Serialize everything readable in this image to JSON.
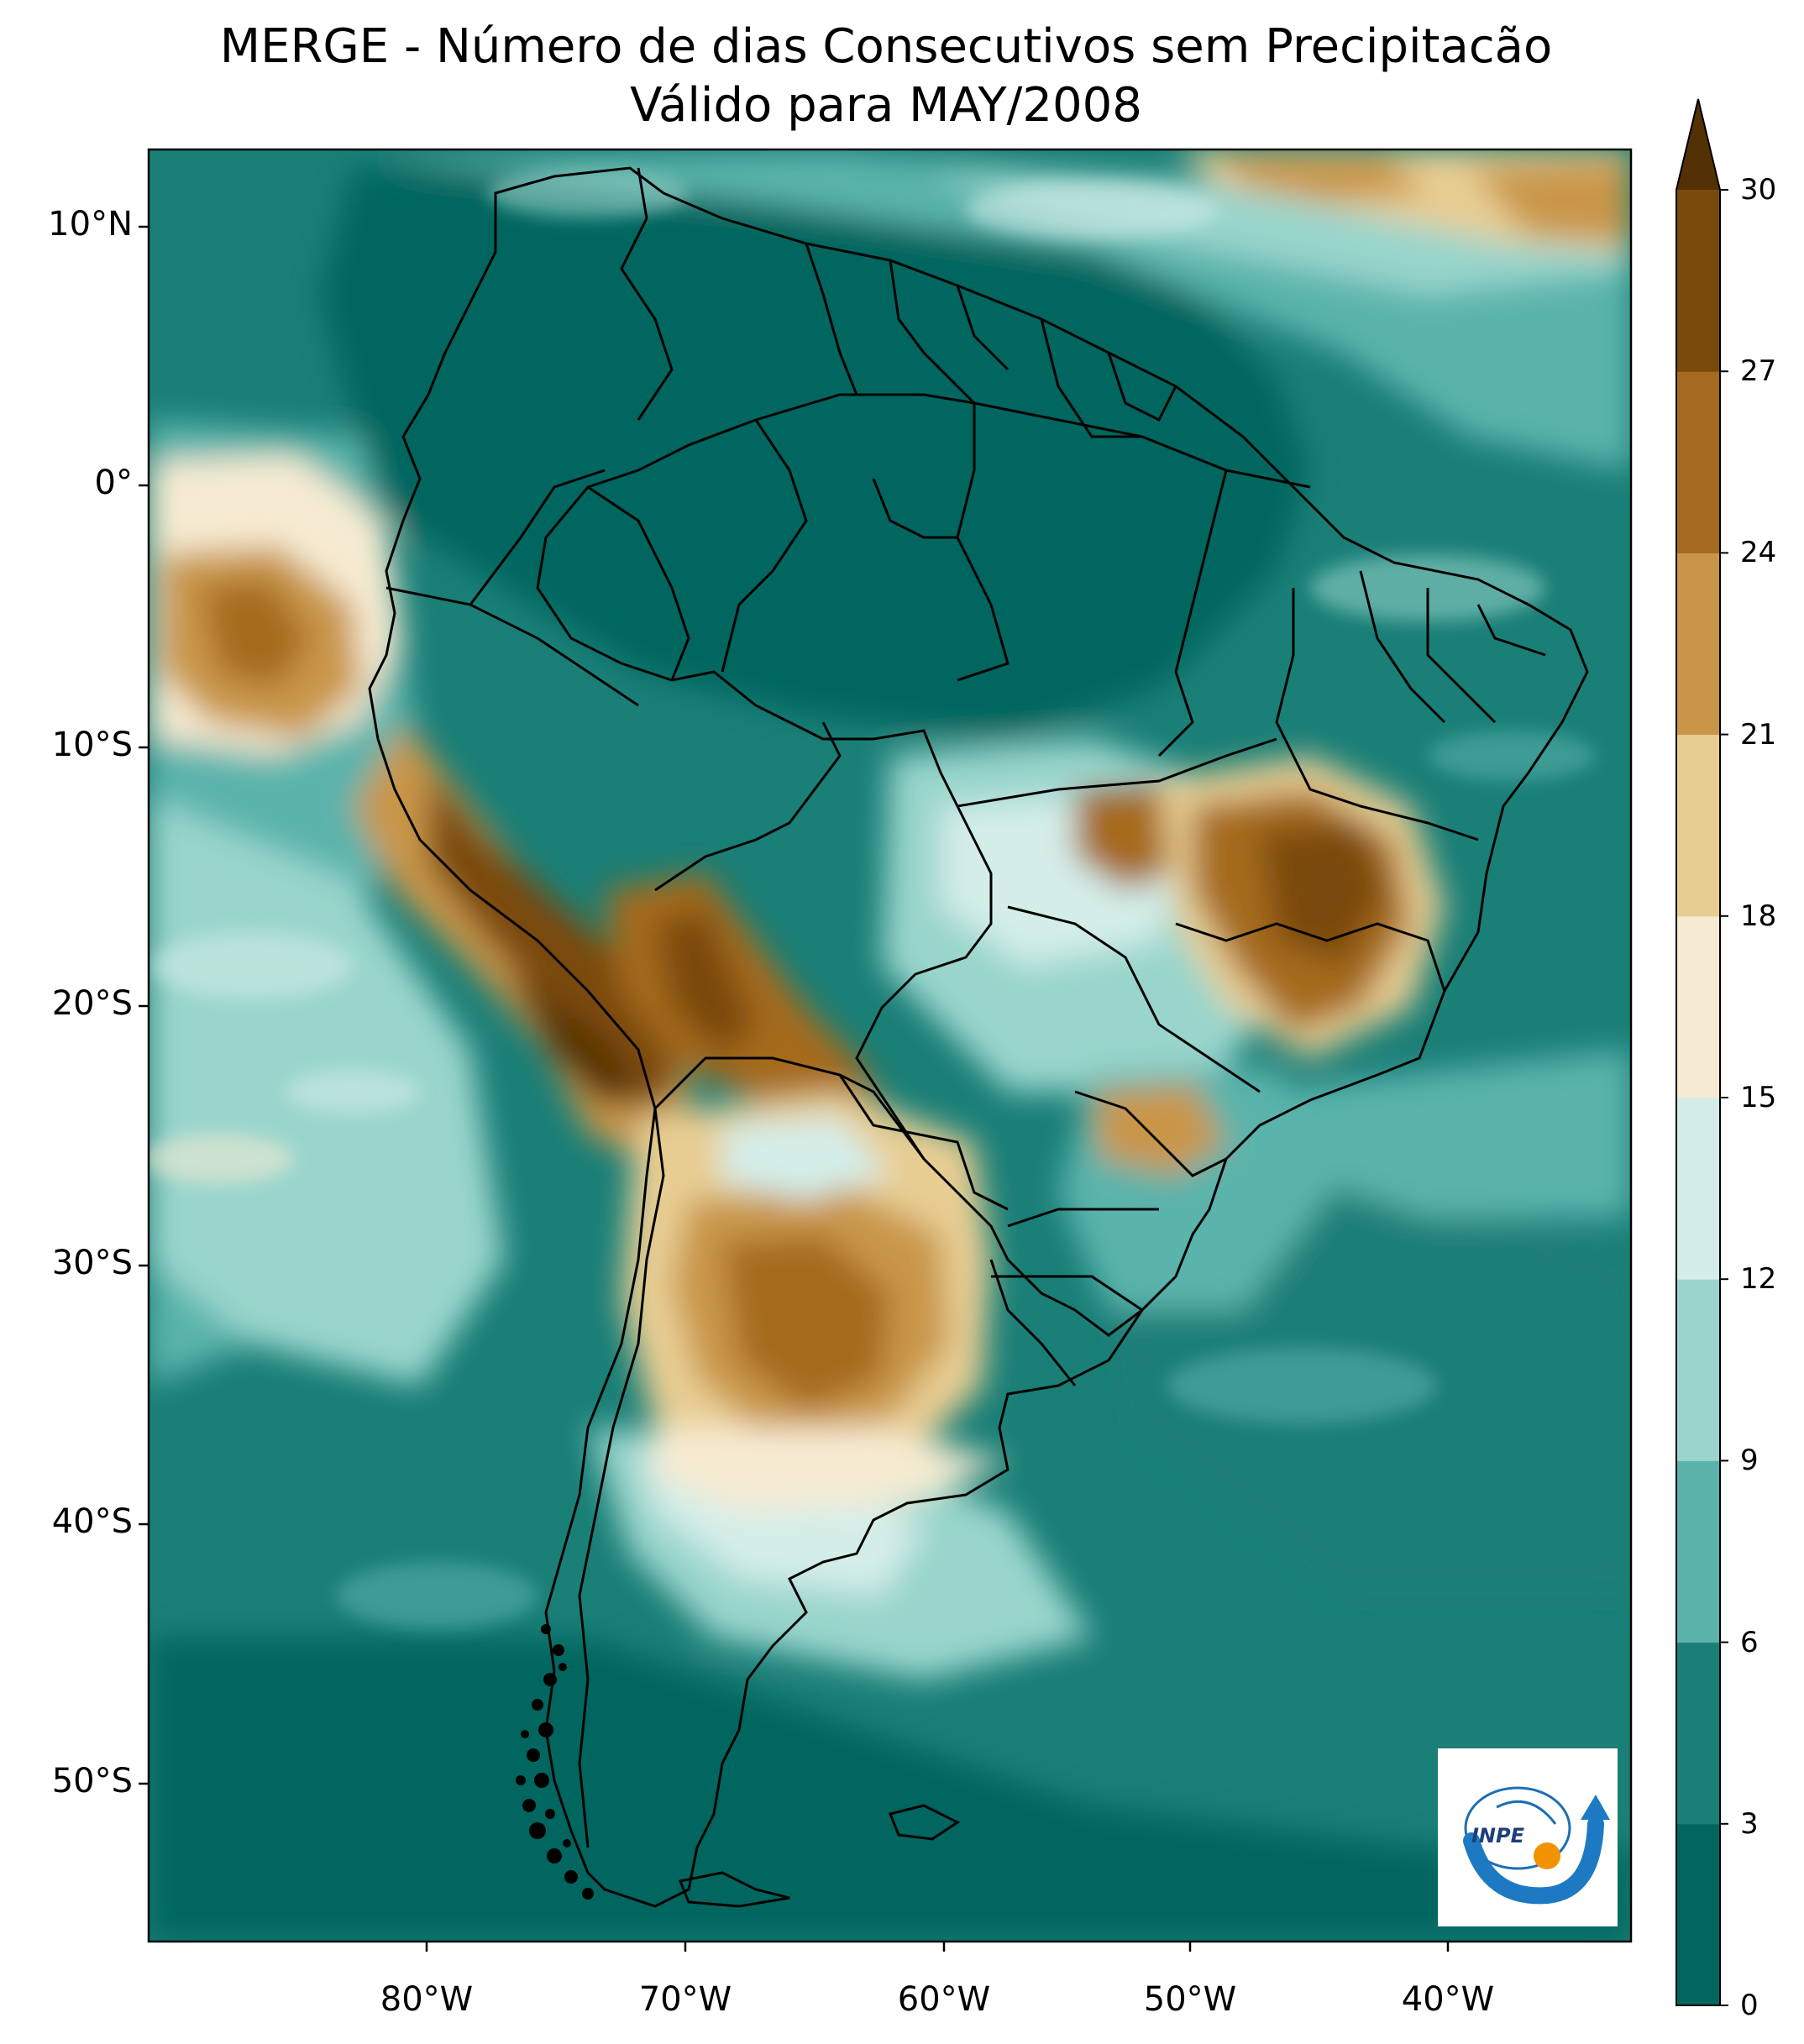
{
  "title": {
    "line1": "MERGE - Número de dias Consecutivos sem Precipitacão",
    "line2": "Válido para MAY/2008"
  },
  "axes": {
    "lat_labels": [
      "10°N",
      "0°",
      "10°S",
      "20°S",
      "30°S",
      "40°S",
      "50°S"
    ],
    "lon_labels": [
      "80°W",
      "70°W",
      "60°W",
      "50°W",
      "40°W"
    ],
    "lon_range": [
      -89.0,
      -31.0
    ],
    "lat_range": [
      -56.5,
      13.0
    ]
  },
  "colorbar": {
    "ticks": [
      "0",
      "3",
      "6",
      "9",
      "12",
      "15",
      "18",
      "21",
      "24",
      "27",
      "30"
    ],
    "colors": [
      "#01665e",
      "#1a7f77",
      "#5ab4ac",
      "#99d5cc",
      "#d4ede9",
      "#f6ebd2",
      "#e8cd93",
      "#c99648",
      "#a56a1f",
      "#7a4a0c"
    ],
    "extend_color": "#543005"
  },
  "logo": {
    "text": "INPE"
  }
}
